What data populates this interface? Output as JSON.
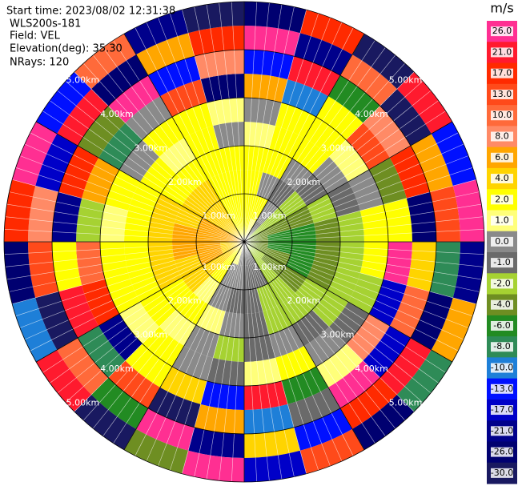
{
  "chart_data": {
    "type": "ppi",
    "info": [
      "Start time: 2023/08/02 12:31:38",
      "WLS200s-181",
      "Field: VEL",
      "Elevation(deg): 35.30",
      "NRays: 120"
    ],
    "colorbar_unit": "m/s",
    "colorbar_ticks": [
      {
        "value": 26,
        "label": "26.0"
      },
      {
        "value": 21,
        "label": "21.0"
      },
      {
        "value": 17,
        "label": "17.0"
      },
      {
        "value": 13,
        "label": "13.0"
      },
      {
        "value": 10,
        "label": "10.0"
      },
      {
        "value": 8,
        "label": "8.0"
      },
      {
        "value": 6,
        "label": "6.0"
      },
      {
        "value": 4,
        "label": "4.0"
      },
      {
        "value": 2,
        "label": "2.0"
      },
      {
        "value": 1,
        "label": "1.0"
      },
      {
        "value": 0,
        "label": "0.0"
      },
      {
        "value": -1,
        "label": "-1.0"
      },
      {
        "value": -2,
        "label": "-2.0"
      },
      {
        "value": -4,
        "label": "-4.0"
      },
      {
        "value": -6,
        "label": "-6.0"
      },
      {
        "value": -8,
        "label": "-8.0"
      },
      {
        "value": -10,
        "label": "-10.0"
      },
      {
        "value": -13,
        "label": "-13.0"
      },
      {
        "value": -17,
        "label": "-17.0"
      },
      {
        "value": -21,
        "label": "-21.0"
      },
      {
        "value": -26,
        "label": "-26.0"
      },
      {
        "value": -30,
        "label": "-30.0"
      }
    ],
    "colors": [
      "#ff2f92",
      "#ff1a2e",
      "#ff2a00",
      "#ff4a1a",
      "#ff6a3a",
      "#ff8a66",
      "#ffa600",
      "#ffd400",
      "#ffff00",
      "#ffff7a",
      "#8a8a8a",
      "#6a6a6a",
      "#a6d232",
      "#6e8e22",
      "#228b22",
      "#2e8b57",
      "#1e7fd8",
      "#0010ff",
      "#0000c8",
      "#00008b",
      "#000070",
      "#191960"
    ],
    "rings": [
      {
        "value": 1,
        "label": "1.00km"
      },
      {
        "value": 2,
        "label": "2.00km"
      },
      {
        "value": 3,
        "label": "3.00km"
      },
      {
        "value": 4,
        "label": "4.00km"
      },
      {
        "value": 5,
        "label": "5.00km"
      }
    ],
    "range_edges": [
      0,
      0.5,
      1,
      1.5,
      2,
      2.5,
      3,
      3.5,
      4,
      4.5,
      5
    ],
    "azimuth_edges": [
      0,
      15,
      30,
      45,
      60,
      75,
      90,
      105,
      120,
      135,
      150,
      165,
      180,
      195,
      210,
      225,
      240,
      255,
      270,
      285,
      300,
      315,
      330,
      345,
      360
    ],
    "values": [
      [
        2,
        1,
        -1,
        -2,
        -4,
        -4,
        -4,
        -4,
        -2,
        -2,
        -1,
        -1,
        0,
        1,
        2,
        4,
        4,
        4,
        6,
        6,
        4,
        4,
        2,
        2
      ],
      [
        2,
        2,
        0,
        -2,
        -4,
        -6,
        -6,
        -4,
        -4,
        -2,
        -1,
        -1,
        0,
        0,
        2,
        4,
        6,
        6,
        6,
        6,
        4,
        4,
        2,
        2
      ],
      [
        2,
        0,
        -1,
        -2,
        -4,
        -6,
        -6,
        -6,
        -4,
        -2,
        -2,
        -1,
        -1,
        0,
        1,
        4,
        4,
        6,
        6,
        4,
        4,
        4,
        2,
        2
      ],
      [
        2,
        2,
        0,
        -1,
        -2,
        -4,
        -4,
        -4,
        -2,
        -2,
        -2,
        -1,
        0,
        1,
        2,
        2,
        4,
        4,
        4,
        4,
        2,
        2,
        2,
        2
      ],
      [
        1,
        2,
        2,
        0,
        -1,
        -2,
        -2,
        -2,
        -2,
        -1,
        0,
        -1,
        -2,
        0,
        1,
        2,
        2,
        2,
        2,
        2,
        2,
        1,
        2,
        0
      ],
      [
        0,
        2,
        2,
        1,
        0,
        2,
        2,
        -2,
        -1,
        0,
        2,
        1,
        -1,
        0,
        2,
        1,
        2,
        2,
        1,
        2,
        0,
        2,
        2,
        1
      ],
      [
        6,
        -10,
        2,
        13,
        -4,
        2,
        26,
        -17,
        8,
        1,
        -6,
        21,
        -13,
        4,
        2,
        -21,
        17,
        10,
        -2,
        6,
        -8,
        0,
        13,
        -26
      ],
      [
        -13,
        21,
        -6,
        8,
        17,
        -26,
        4,
        10,
        -17,
        26,
        -1,
        -10,
        6,
        -30,
        13,
        -8,
        21,
        2,
        -21,
        17,
        -4,
        26,
        -13,
        8
      ],
      [
        26,
        -21,
        10,
        -30,
        6,
        13,
        -8,
        -26,
        21,
        17,
        -13,
        4,
        -21,
        26,
        -6,
        10,
        -30,
        13,
        8,
        -17,
        21,
        -26,
        6,
        17
      ],
      [
        -26,
        17,
        -30,
        21,
        -13,
        26,
        -21,
        6,
        -8,
        -26,
        13,
        -17,
        26,
        -4,
        -30,
        21,
        -10,
        -26,
        17,
        26,
        -13,
        10,
        -21,
        -30
      ]
    ]
  }
}
